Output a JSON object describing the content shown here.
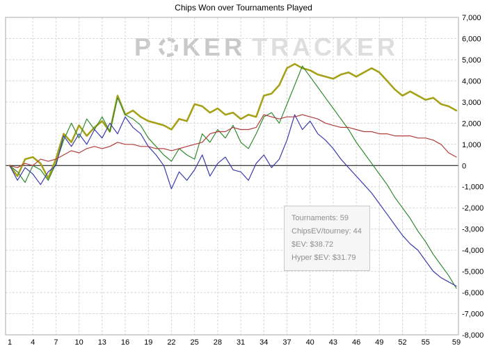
{
  "page": {
    "title": "Chips Won over Tournaments Played"
  },
  "watermark": {
    "part1": "P",
    "part2": "KER",
    "part3": "TRACKER",
    "chip_icon": "poker-chip"
  },
  "tooltip": {
    "lines": [
      "Tournaments: 59",
      "ChipsEV/tourney: 44",
      "$EV: $38.72",
      "Hyper $EV: $31.79"
    ]
  },
  "chart_data": {
    "type": "line",
    "title": "Chips Won over Tournaments Played",
    "xlabel": "",
    "ylabel": "",
    "xlim": [
      1,
      59
    ],
    "ylim": [
      -8000,
      7000
    ],
    "grid": true,
    "legend": "none",
    "x_ticks": [
      1,
      4,
      7,
      10,
      13,
      16,
      19,
      22,
      25,
      28,
      31,
      34,
      37,
      40,
      43,
      46,
      49,
      52,
      55,
      59
    ],
    "x_tick_labels": [
      "1",
      "4",
      "7",
      "10",
      "13",
      "16",
      "19",
      "22",
      "25",
      "28",
      "31",
      "34",
      "37",
      "40",
      "43",
      "46",
      "49",
      "52",
      "55",
      "59"
    ],
    "y_ticks": [
      7000,
      6000,
      5000,
      4000,
      3000,
      2000,
      1000,
      0,
      -1000,
      -2000,
      -3000,
      -4000,
      -5000,
      -6000,
      -7000,
      -8000
    ],
    "y_tick_labels": [
      "7,000",
      "6,000",
      "5,000",
      "4,000",
      "3,000",
      "2,000",
      "1,000",
      "0",
      "-1,000",
      "-2,000",
      "-3,000",
      "-4,000",
      "-5,000",
      "-6,000",
      "-7,000",
      "-8,000"
    ],
    "x": [
      1,
      2,
      3,
      4,
      5,
      6,
      7,
      8,
      9,
      10,
      11,
      12,
      13,
      14,
      15,
      16,
      17,
      18,
      19,
      20,
      21,
      22,
      23,
      24,
      25,
      26,
      27,
      28,
      29,
      30,
      31,
      32,
      33,
      34,
      35,
      36,
      37,
      38,
      39,
      40,
      41,
      42,
      43,
      44,
      45,
      46,
      47,
      48,
      49,
      50,
      51,
      52,
      53,
      54,
      55,
      56,
      57,
      58,
      59
    ],
    "series": [
      {
        "name": "chips-won-olive",
        "color": "#a6a218",
        "width": 2.6,
        "values": [
          0,
          -500,
          300,
          400,
          100,
          -600,
          300,
          1500,
          1100,
          1900,
          1400,
          1800,
          2100,
          1600,
          3300,
          2400,
          2600,
          2300,
          2100,
          2000,
          1900,
          1700,
          2200,
          2100,
          2900,
          2800,
          2500,
          2700,
          2400,
          2500,
          2200,
          2400,
          2300,
          3300,
          3400,
          3800,
          4600,
          4800,
          4600,
          4500,
          4300,
          4200,
          4100,
          4300,
          4400,
          4200,
          4400,
          4600,
          4400,
          4000,
          3600,
          3300,
          3500,
          3300,
          3100,
          3200,
          2900,
          2800,
          2600
        ]
      },
      {
        "name": "green-line",
        "color": "#2e8b2e",
        "width": 1.2,
        "values": [
          0,
          -300,
          -800,
          0,
          -200,
          -700,
          100,
          1200,
          2000,
          1300,
          2200,
          1700,
          2300,
          1600,
          3200,
          2400,
          2200,
          1900,
          1300,
          900,
          500,
          200,
          800,
          500,
          300,
          1500,
          1100,
          1700,
          1300,
          1900,
          1100,
          800,
          1500,
          2300,
          2500,
          2000,
          2900,
          3800,
          4700,
          4200,
          3700,
          3200,
          2700,
          2200,
          1700,
          1100,
          600,
          100,
          -400,
          -900,
          -1500,
          -2000,
          -2500,
          -3100,
          -3600,
          -4200,
          -4700,
          -5200,
          -5800
        ]
      },
      {
        "name": "blue-line",
        "color": "#3a3ab0",
        "width": 1.2,
        "values": [
          0,
          -700,
          -100,
          -400,
          -900,
          -300,
          0,
          1400,
          900,
          1500,
          1000,
          1700,
          1300,
          2000,
          1500,
          2300,
          1800,
          1500,
          900,
          500,
          0,
          -1100,
          -300,
          -700,
          -200,
          500,
          -500,
          100,
          400,
          -200,
          -300,
          -700,
          100,
          500,
          -100,
          300,
          1200,
          2400,
          1700,
          2100,
          1500,
          1200,
          800,
          300,
          -100,
          -500,
          -900,
          -1300,
          -1800,
          -2300,
          -2800,
          -3300,
          -3700,
          -4000,
          -4500,
          -5000,
          -5300,
          -5500,
          -5700
        ]
      },
      {
        "name": "red-line",
        "color": "#b23b3b",
        "width": 1.2,
        "values": [
          0,
          -100,
          100,
          0,
          300,
          200,
          300,
          500,
          700,
          600,
          800,
          900,
          800,
          900,
          1100,
          1000,
          1000,
          900,
          900,
          800,
          800,
          700,
          800,
          900,
          1000,
          1100,
          1500,
          1600,
          1600,
          1800,
          1700,
          1700,
          1800,
          2400,
          2300,
          2200,
          2300,
          2300,
          2400,
          2300,
          2200,
          2000,
          1900,
          1800,
          1800,
          1700,
          1600,
          1600,
          1500,
          1500,
          1400,
          1400,
          1400,
          1300,
          1300,
          1200,
          1000,
          600,
          400
        ]
      }
    ],
    "colors": {
      "grid": "#d8d8d8",
      "border": "#aaaaaa",
      "zero_line": "#000000",
      "background": "#ffffff"
    }
  }
}
